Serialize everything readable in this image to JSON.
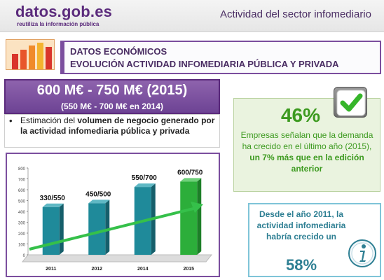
{
  "header": {
    "logo_text": "datos.gob.es",
    "logo_tagline": "reutiliza la información pública",
    "title": "Actividad del sector infomediario"
  },
  "section": {
    "line1": "DATOS ECONÓMICOS",
    "line2": "EVOLUCIÓN ACTIVIDAD INFOMEDIARIA PÚBLICA Y PRIVADA"
  },
  "value_box": {
    "main": "600 M€ - 750 M€ (2015)",
    "sub": "(550 M€ - 700 M€ en 2014)"
  },
  "estimate": {
    "bullet": "•",
    "prefix": "Estimación del ",
    "bold": "volumen de negocio generado por la actividad infomediaria pública y privada"
  },
  "percent_box": {
    "value": "46%",
    "text": "Empresas señalan que la demanda ha crecido en el último año (2015), ",
    "strong": "un 7% más que en la edición anterior"
  },
  "growth_box": {
    "text": "Desde el año 2011, la actividad infomediaria habría crecido un",
    "value": "58%"
  },
  "icons": {
    "check": "check-icon",
    "info": "info-icon",
    "thumbnail": "bar-chart-icon",
    "trend_arrow": "trend-arrow-icon"
  },
  "colors": {
    "purple": "#6d4394",
    "green": "#3c9a1f",
    "teal_bar": "#1f8a9a",
    "green_bar": "#2cae3a",
    "blue_text": "#2e7f93"
  },
  "chart_data": {
    "type": "bar",
    "categories": [
      "2011",
      "2012",
      "2014",
      "2015"
    ],
    "series": [
      {
        "values": [
          440,
          475,
          625,
          675
        ]
      }
    ],
    "data_labels": [
      "330/550",
      "450/500",
      "550/700",
      "600/750"
    ],
    "y_ticks": [
      "0",
      "100",
      "200",
      "300",
      "400",
      "500",
      "600",
      "700",
      "800"
    ],
    "ylim": [
      0,
      800
    ],
    "grid": false,
    "title": "",
    "xlabel": "",
    "ylabel": ""
  }
}
